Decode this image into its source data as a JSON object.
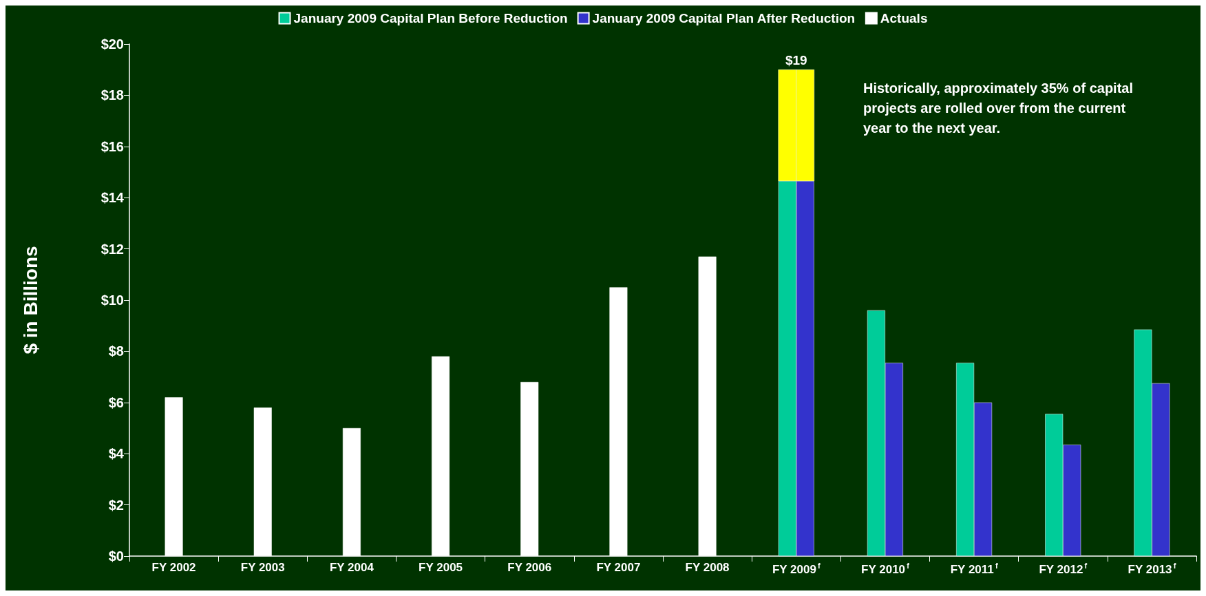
{
  "chart_data": {
    "type": "bar",
    "ylabel": "$ in Billions",
    "categories": [
      "FY 2002",
      "FY 2003",
      "FY 2004",
      "FY 2005",
      "FY 2006",
      "FY 2007",
      "FY 2008",
      "FY 2009$^{f}$",
      "FY 2010$^{f}$",
      "FY 2011$^{f}$",
      "FY 2012$^{f}$",
      "FY 2013$^{f}$"
    ],
    "series": [
      {
        "name": "January 2009 Capital Plan Before Reduction",
        "color": "#00cc99",
        "values": [
          null,
          null,
          null,
          null,
          null,
          null,
          null,
          14.65,
          9.6,
          7.55,
          5.55,
          8.85
        ]
      },
      {
        "color": "#ffff00",
        "base": [
          null,
          null,
          null,
          null,
          null,
          null,
          null,
          14.65,
          null,
          null,
          null,
          null
        ],
        "values": [
          null,
          null,
          null,
          null,
          null,
          null,
          null,
          4.35,
          null,
          null,
          null,
          null
        ]
      },
      {
        "name": "January 2009 Capital Plan After Reduction",
        "color": "#3333cc",
        "values": [
          null,
          null,
          null,
          null,
          null,
          null,
          null,
          14.65,
          7.55,
          6.0,
          4.35,
          6.75
        ]
      },
      {
        "color": "#ffff00",
        "base": [
          null,
          null,
          null,
          null,
          null,
          null,
          null,
          14.65,
          null,
          null,
          null,
          null
        ],
        "values": [
          null,
          null,
          null,
          null,
          null,
          null,
          null,
          4.35,
          null,
          null,
          null,
          null
        ]
      },
      {
        "name": "Actuals",
        "color": "#ffffff",
        "values": [
          6.2,
          5.8,
          5.0,
          7.8,
          6.8,
          10.5,
          11.7,
          null,
          null,
          null,
          null,
          null
        ]
      }
    ],
    "ylim": [
      0,
      20
    ],
    "yticks": [
      {
        "value": 0,
        "label": "$0"
      },
      {
        "value": 2,
        "label": "$2"
      },
      {
        "value": 4,
        "label": "$4"
      },
      {
        "value": 6,
        "label": "$6"
      },
      {
        "value": 8,
        "label": "$8"
      },
      {
        "value": 10,
        "label": "$10"
      },
      {
        "value": 12,
        "label": "$12"
      },
      {
        "value": 14,
        "label": "$14"
      },
      {
        "value": 16,
        "label": "$16"
      },
      {
        "value": 18,
        "label": "$18"
      },
      {
        "value": 20,
        "label": "$20"
      }
    ],
    "annotations": [
      {
        "text": "$19",
        "x": "FY 2009$^{f}$",
        "y": 19
      },
      "Historically, approximately 35% of capital projects are rolled over from the current year to the next year."
    ],
    "grid": false,
    "legend": "top"
  }
}
